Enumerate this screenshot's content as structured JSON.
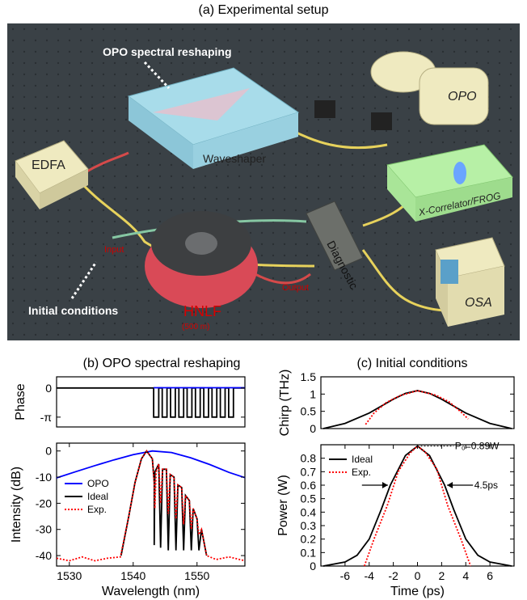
{
  "figure": {
    "title_a": "(a) Experimental setup",
    "title_b": "(b) OPO spectral reshaping",
    "title_c": "(c) Initial conditions"
  },
  "setup": {
    "callout_top": "OPO spectral reshaping",
    "callout_bottom": "Initial conditions",
    "edfa": "EDFA",
    "waveshaper": "Waveshaper",
    "opo": "OPO",
    "xcorr": "X-Correlator/FROG",
    "diagnostic": "Diagnostic",
    "osa": "OSA",
    "hnlf": "HNLF",
    "hnlf_len": "(500 m)",
    "input": "Input",
    "output": "Output"
  },
  "colors": {
    "opo": "#0000ff",
    "ideal": "#000000",
    "exp": "#ff0000",
    "table": "#3a4146",
    "waveshaper_box": "#a8dcea",
    "xcorr_box": "#b7f0a6",
    "instrument": "#efeac0"
  },
  "chart_data": [
    {
      "id": "phase",
      "type": "line",
      "ylabel": "Phase",
      "xlim": [
        1528,
        1557.5
      ],
      "ylim": [
        -4.2,
        1.2
      ],
      "yticks": [
        0,
        -3.14159
      ],
      "ytick_labels": [
        "0",
        "-π"
      ],
      "series": [
        {
          "name": "Phase",
          "color": "#000000",
          "points": [
            [
              1528,
              0
            ],
            [
              1543.2,
              0
            ],
            [
              1543.2,
              -3.14159
            ],
            [
              1544.0,
              -3.14159
            ],
            [
              1544.0,
              0
            ],
            [
              1544.55,
              0
            ],
            [
              1544.55,
              -3.14159
            ],
            [
              1545.3,
              -3.14159
            ],
            [
              1545.3,
              0
            ],
            [
              1545.85,
              0
            ],
            [
              1545.85,
              -3.14159
            ],
            [
              1546.6,
              -3.14159
            ],
            [
              1546.6,
              0
            ],
            [
              1547.15,
              0
            ],
            [
              1547.15,
              -3.14159
            ],
            [
              1547.9,
              -3.14159
            ],
            [
              1547.9,
              0
            ],
            [
              1548.45,
              0
            ],
            [
              1548.45,
              -3.14159
            ],
            [
              1549.2,
              -3.14159
            ],
            [
              1549.2,
              0
            ],
            [
              1549.75,
              0
            ],
            [
              1549.75,
              -3.14159
            ],
            [
              1550.5,
              -3.14159
            ],
            [
              1550.5,
              0
            ],
            [
              1551.05,
              0
            ],
            [
              1551.05,
              -3.14159
            ],
            [
              1551.8,
              -3.14159
            ],
            [
              1551.8,
              0
            ],
            [
              1552.35,
              0
            ],
            [
              1552.35,
              -3.14159
            ],
            [
              1553.1,
              -3.14159
            ],
            [
              1553.1,
              0
            ],
            [
              1553.65,
              0
            ],
            [
              1553.65,
              -3.14159
            ],
            [
              1554.4,
              -3.14159
            ],
            [
              1554.4,
              0
            ],
            [
              1554.95,
              0
            ],
            [
              1554.95,
              -3.14159
            ],
            [
              1555.7,
              -3.14159
            ],
            [
              1555.7,
              0
            ],
            [
              1557.5,
              0
            ]
          ]
        },
        {
          "name": "Phase-blue",
          "color": "#0000ff",
          "points": [
            [
              1543.2,
              0.02
            ],
            [
              1557.5,
              0.02
            ]
          ]
        }
      ]
    },
    {
      "id": "intensity",
      "type": "line",
      "xlabel": "Wavelength (nm)",
      "ylabel": "Intensity (dB)",
      "xlim": [
        1528,
        1557.5
      ],
      "ylim": [
        -44,
        3
      ],
      "xticks": [
        1530,
        1540,
        1550
      ],
      "yticks": [
        0,
        -10,
        -20,
        -30,
        -40
      ],
      "legend": {
        "position": "left",
        "entries": [
          "OPO",
          "Ideal",
          "Exp."
        ]
      },
      "series": [
        {
          "name": "OPO",
          "color": "#0000ff",
          "dash": "solid",
          "points": [
            [
              1528,
              -10.3
            ],
            [
              1531,
              -7.9
            ],
            [
              1534,
              -5.6
            ],
            [
              1537,
              -3.4
            ],
            [
              1540,
              -1.4
            ],
            [
              1543,
              0
            ],
            [
              1546,
              -0.6
            ],
            [
              1549,
              -2.6
            ],
            [
              1552,
              -5.2
            ],
            [
              1555,
              -8.2
            ],
            [
              1557.5,
              -10.2
            ]
          ]
        },
        {
          "name": "Ideal",
          "color": "#000000",
          "dash": "solid",
          "points": [
            [
              1538.1,
              -40
            ],
            [
              1539.3,
              -25
            ],
            [
              1540.3,
              -12
            ],
            [
              1541.3,
              -3
            ],
            [
              1542.1,
              0
            ],
            [
              1543.0,
              -3
            ],
            [
              1543.3,
              -12
            ],
            [
              1543.3,
              -36
            ],
            [
              1543.4,
              -8
            ],
            [
              1544.0,
              -5
            ],
            [
              1544.3,
              -37
            ],
            [
              1544.6,
              -7
            ],
            [
              1545.2,
              -7
            ],
            [
              1545.5,
              -38
            ],
            [
              1545.8,
              -9
            ],
            [
              1546.4,
              -10
            ],
            [
              1546.7,
              -38
            ],
            [
              1547.0,
              -13
            ],
            [
              1547.6,
              -14
            ],
            [
              1547.9,
              -38
            ],
            [
              1548.2,
              -17
            ],
            [
              1548.8,
              -19
            ],
            [
              1549.1,
              -38
            ],
            [
              1549.4,
              -22
            ],
            [
              1550.0,
              -26
            ],
            [
              1550.3,
              -38
            ],
            [
              1550.7,
              -30
            ],
            [
              1551.5,
              -40
            ]
          ]
        },
        {
          "name": "Exp.",
          "color": "#ff0000",
          "dash": "dotted",
          "points": [
            [
              1528,
              -41
            ],
            [
              1530,
              -42
            ],
            [
              1532,
              -40.5
            ],
            [
              1534,
              -42
            ],
            [
              1536,
              -41
            ],
            [
              1538,
              -40.5
            ],
            [
              1539.3,
              -25
            ],
            [
              1540.3,
              -12
            ],
            [
              1541.3,
              -3
            ],
            [
              1542.1,
              0
            ],
            [
              1543.0,
              -3
            ],
            [
              1543.3,
              -12
            ],
            [
              1543.4,
              -22
            ],
            [
              1543.6,
              -8
            ],
            [
              1544.0,
              -5
            ],
            [
              1544.3,
              -20
            ],
            [
              1544.6,
              -7
            ],
            [
              1545.2,
              -7
            ],
            [
              1545.5,
              -24
            ],
            [
              1545.8,
              -9
            ],
            [
              1546.4,
              -10
            ],
            [
              1546.7,
              -26
            ],
            [
              1547.0,
              -13
            ],
            [
              1547.6,
              -14
            ],
            [
              1547.9,
              -28
            ],
            [
              1548.2,
              -17
            ],
            [
              1548.8,
              -19
            ],
            [
              1549.1,
              -30
            ],
            [
              1549.4,
              -22
            ],
            [
              1550.0,
              -26
            ],
            [
              1550.3,
              -32
            ],
            [
              1550.7,
              -30
            ],
            [
              1551.5,
              -40
            ],
            [
              1553,
              -41.5
            ],
            [
              1555,
              -40.5
            ],
            [
              1557.5,
              -42
            ]
          ]
        }
      ]
    },
    {
      "id": "chirp",
      "type": "line",
      "ylabel": "Chirp (THz)",
      "xlim": [
        -8,
        8
      ],
      "ylim": [
        0,
        1.5
      ],
      "yticks": [
        0,
        0.5,
        1,
        1.5
      ],
      "ytick_labels": [
        "0",
        "0.5",
        "1",
        "1.5"
      ],
      "series": [
        {
          "name": "Ideal",
          "color": "#000000",
          "dash": "solid",
          "points": [
            [
              -7.8,
              0.0
            ],
            [
              -6,
              0.15
            ],
            [
              -4,
              0.45
            ],
            [
              -2,
              0.85
            ],
            [
              -1,
              1.02
            ],
            [
              0,
              1.1
            ],
            [
              1,
              1.02
            ],
            [
              2,
              0.85
            ],
            [
              4,
              0.45
            ],
            [
              6,
              0.15
            ],
            [
              7.8,
              0.0
            ]
          ]
        },
        {
          "name": "Exp.",
          "color": "#ff0000",
          "dash": "dotted",
          "points": [
            [
              -4.3,
              0.12
            ],
            [
              -3.6,
              0.45
            ],
            [
              -2.6,
              0.75
            ],
            [
              -1.5,
              0.95
            ],
            [
              0,
              1.1
            ],
            [
              1.5,
              0.97
            ],
            [
              2.6,
              0.78
            ],
            [
              3.6,
              0.48
            ],
            [
              4.2,
              0.28
            ]
          ]
        }
      ]
    },
    {
      "id": "power",
      "type": "line",
      "xlabel": "Time (ps)",
      "ylabel": "Power (W)",
      "xlim": [
        -8,
        8
      ],
      "ylim": [
        0,
        0.9
      ],
      "xticks": [
        -6,
        -4,
        -2,
        0,
        2,
        4,
        6
      ],
      "yticks": [
        0,
        0.1,
        0.2,
        0.3,
        0.4,
        0.5,
        0.6,
        0.7,
        0.8
      ],
      "legend": {
        "position": "top-left",
        "entries": [
          "Ideal",
          "Exp."
        ]
      },
      "annotations": {
        "peak": "P₀=0.89W",
        "fwhm": "4.5ps"
      },
      "series": [
        {
          "name": "Ideal",
          "color": "#000000",
          "dash": "solid",
          "points": [
            [
              -7.8,
              0.0
            ],
            [
              -6,
              0.03
            ],
            [
              -5,
              0.08
            ],
            [
              -4,
              0.2
            ],
            [
              -3,
              0.42
            ],
            [
              -2.25,
              0.6
            ],
            [
              -1,
              0.82
            ],
            [
              0,
              0.89
            ],
            [
              1,
              0.82
            ],
            [
              2.25,
              0.6
            ],
            [
              3,
              0.42
            ],
            [
              4,
              0.2
            ],
            [
              5,
              0.08
            ],
            [
              6,
              0.03
            ],
            [
              7.8,
              0.0
            ]
          ]
        },
        {
          "name": "Exp.",
          "color": "#ff0000",
          "dash": "dotted",
          "points": [
            [
              -4.4,
              0.0
            ],
            [
              -3.6,
              0.2
            ],
            [
              -2.5,
              0.45
            ],
            [
              -1.6,
              0.7
            ],
            [
              -0.6,
              0.84
            ],
            [
              0,
              0.89
            ],
            [
              0.6,
              0.85
            ],
            [
              1.6,
              0.72
            ],
            [
              2.5,
              0.45
            ],
            [
              3.6,
              0.2
            ],
            [
              4.4,
              0.0
            ]
          ]
        }
      ]
    }
  ]
}
